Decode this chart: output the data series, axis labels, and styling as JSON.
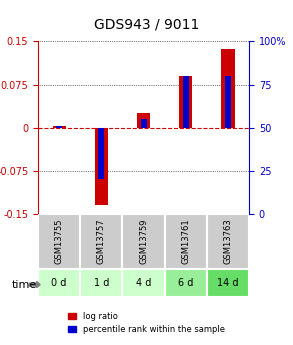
{
  "title": "GDS943 / 9011",
  "samples": [
    "GSM13755",
    "GSM13757",
    "GSM13759",
    "GSM13761",
    "GSM13763"
  ],
  "time_labels": [
    "0 d",
    "1 d",
    "4 d",
    "6 d",
    "14 d"
  ],
  "log_ratio": [
    0.002,
    -0.135,
    0.025,
    0.09,
    0.137
  ],
  "percentile": [
    51,
    20,
    55,
    80,
    80
  ],
  "ylim_left": [
    -0.15,
    0.15
  ],
  "ylim_right": [
    0,
    100
  ],
  "yticks_left": [
    -0.15,
    -0.075,
    0,
    0.075,
    0.15
  ],
  "ytick_labels_left": [
    "-0.15",
    "-0.075",
    "0",
    "0.075",
    "0.15"
  ],
  "yticks_right": [
    0,
    25,
    50,
    75,
    100
  ],
  "ytick_labels_right": [
    "0",
    "25",
    "50",
    "75",
    "100%"
  ],
  "bar_color_red": "#cc0000",
  "bar_color_blue": "#0000cc",
  "zero_line_color": "#cc0000",
  "sample_box_color": "#cccccc",
  "time_box_colors": [
    "#ccffcc",
    "#ccffcc",
    "#ccffcc",
    "#99ee99",
    "#66dd66"
  ],
  "legend_red": "log ratio",
  "legend_blue": "percentile rank within the sample",
  "bar_width": 0.35,
  "figsize": [
    2.93,
    3.45
  ],
  "dpi": 100
}
